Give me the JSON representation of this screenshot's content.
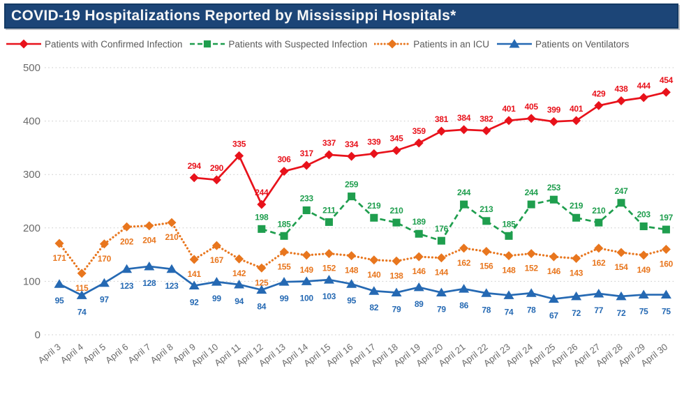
{
  "title_bar": {
    "title": "COVID-19 Hospitalizations Reported by Mississippi Hospitals*",
    "bg_color": "#1c4577",
    "text_color": "#f7f7f7"
  },
  "chart_data": {
    "type": "line",
    "title": "COVID-19 Hospitalizations Reported by Mississippi Hospitals*",
    "legend_position": "top",
    "grid": "dotted-horizontal",
    "x_categories": [
      "April 3",
      "April 4",
      "April 5",
      "April 6",
      "April 7",
      "April 8",
      "April 9",
      "April 10",
      "April 11",
      "April 12",
      "April 13",
      "April 14",
      "April 15",
      "April 16",
      "April 17",
      "April 18",
      "April 19",
      "April 20",
      "April 21",
      "April 22",
      "April 23",
      "April 24",
      "April 25",
      "April 26",
      "April 27",
      "April 28",
      "April 29",
      "April 30"
    ],
    "y_axis": {
      "min": 0,
      "max": 500,
      "tick_interval": 100,
      "ticks": [
        500,
        400,
        300,
        200,
        100,
        0
      ]
    },
    "series": [
      {
        "name": "Patients with Confirmed Infection",
        "key": "confirmed",
        "color": "#e8121b",
        "marker": "diamond",
        "line_style": "solid",
        "label_position": "above",
        "start_index": 6,
        "values": [
          294,
          290,
          335,
          244,
          306,
          317,
          337,
          334,
          339,
          345,
          359,
          381,
          384,
          382,
          401,
          405,
          399,
          401,
          429,
          438,
          444,
          454
        ]
      },
      {
        "name": "Patients with Suspected Infection",
        "key": "suspected",
        "color": "#1f9e4e",
        "marker": "square",
        "line_style": "dashed",
        "label_position": "above",
        "start_index": 9,
        "values": [
          198,
          185,
          233,
          211,
          259,
          219,
          210,
          189,
          176,
          244,
          213,
          185,
          244,
          253,
          219,
          210,
          247,
          203,
          197
        ]
      },
      {
        "name": "Patients in an ICU",
        "key": "icu",
        "color": "#e8761e",
        "marker": "diamond",
        "line_style": "dotted",
        "label_position": "below",
        "start_index": 0,
        "values": [
          171,
          115,
          170,
          202,
          204,
          210,
          141,
          167,
          142,
          125,
          155,
          149,
          152,
          148,
          140,
          138,
          146,
          144,
          162,
          156,
          148,
          152,
          146,
          143,
          162,
          154,
          149,
          160
        ]
      },
      {
        "name": "Patients on Ventilators",
        "key": "ventilators",
        "color": "#2569b3",
        "marker": "triangle",
        "line_style": "solid",
        "label_position": "below",
        "start_index": 0,
        "values": [
          95,
          74,
          97,
          123,
          128,
          123,
          92,
          99,
          94,
          84,
          99,
          100,
          103,
          95,
          82,
          79,
          89,
          79,
          86,
          78,
          74,
          78,
          67,
          72,
          77,
          72,
          75,
          75
        ]
      }
    ]
  }
}
